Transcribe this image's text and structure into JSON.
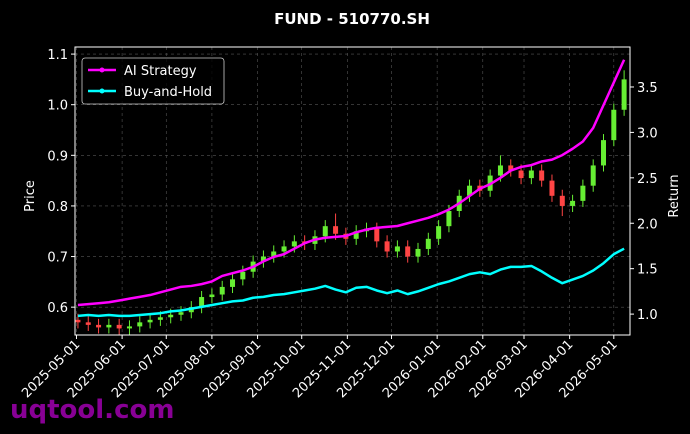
{
  "chart_data": {
    "type": "candlestick",
    "title": "FUND - 510770.SH",
    "ylabel": "Price",
    "y2label": "Return",
    "watermark": "uqtool.com",
    "x": [
      "2025-05-02",
      "2025-05-09",
      "2025-05-16",
      "2025-05-23",
      "2025-05-30",
      "2025-06-06",
      "2025-06-13",
      "2025-06-20",
      "2025-06-27",
      "2025-07-04",
      "2025-07-11",
      "2025-07-18",
      "2025-07-25",
      "2025-08-01",
      "2025-08-08",
      "2025-08-15",
      "2025-08-22",
      "2025-08-29",
      "2025-09-05",
      "2025-09-12",
      "2025-09-19",
      "2025-09-26",
      "2025-10-03",
      "2025-10-10",
      "2025-10-17",
      "2025-10-24",
      "2025-10-31",
      "2025-11-07",
      "2025-11-14",
      "2025-11-21",
      "2025-11-28",
      "2025-12-05",
      "2025-12-12",
      "2025-12-19",
      "2025-12-26",
      "2026-01-02",
      "2026-01-09",
      "2026-01-16",
      "2026-01-23",
      "2026-01-30",
      "2026-02-06",
      "2026-02-13",
      "2026-02-20",
      "2026-02-27",
      "2026-03-06",
      "2026-03-13",
      "2026-03-20",
      "2026-03-27",
      "2026-04-03",
      "2026-04-10",
      "2026-04-17",
      "2026-04-24",
      "2026-05-01",
      "2026-05-08"
    ],
    "ohlc": {
      "up_color": "#66ee33",
      "down_color": "#ff4444",
      "open": [
        0.575,
        0.57,
        0.565,
        0.56,
        0.565,
        0.558,
        0.562,
        0.57,
        0.575,
        0.58,
        0.585,
        0.59,
        0.6,
        0.62,
        0.625,
        0.64,
        0.655,
        0.67,
        0.69,
        0.7,
        0.71,
        0.72,
        0.73,
        0.725,
        0.74,
        0.76,
        0.745,
        0.735,
        0.75,
        0.755,
        0.73,
        0.71,
        0.72,
        0.7,
        0.715,
        0.735,
        0.76,
        0.79,
        0.82,
        0.84,
        0.83,
        0.86,
        0.88,
        0.87,
        0.855,
        0.87,
        0.85,
        0.82,
        0.8,
        0.81,
        0.84,
        0.88,
        0.93,
        0.99
      ],
      "high": [
        0.587,
        0.582,
        0.577,
        0.577,
        0.577,
        0.574,
        0.582,
        0.587,
        0.592,
        0.597,
        0.602,
        0.612,
        0.632,
        0.637,
        0.652,
        0.667,
        0.682,
        0.702,
        0.712,
        0.722,
        0.732,
        0.742,
        0.742,
        0.752,
        0.772,
        0.785,
        0.757,
        0.762,
        0.767,
        0.767,
        0.742,
        0.732,
        0.732,
        0.727,
        0.747,
        0.772,
        0.802,
        0.832,
        0.852,
        0.852,
        0.872,
        0.9,
        0.892,
        0.882,
        0.882,
        0.882,
        0.862,
        0.832,
        0.822,
        0.852,
        0.892,
        0.942,
        1.002,
        1.068
      ],
      "low": [
        0.558,
        0.553,
        0.548,
        0.548,
        0.546,
        0.546,
        0.55,
        0.558,
        0.563,
        0.568,
        0.573,
        0.578,
        0.588,
        0.608,
        0.613,
        0.628,
        0.643,
        0.658,
        0.678,
        0.688,
        0.698,
        0.708,
        0.713,
        0.713,
        0.728,
        0.733,
        0.723,
        0.723,
        0.738,
        0.718,
        0.698,
        0.698,
        0.688,
        0.688,
        0.703,
        0.723,
        0.748,
        0.778,
        0.808,
        0.818,
        0.818,
        0.848,
        0.858,
        0.843,
        0.843,
        0.838,
        0.808,
        0.78,
        0.788,
        0.798,
        0.828,
        0.868,
        0.918,
        0.978
      ],
      "close": [
        0.57,
        0.565,
        0.56,
        0.565,
        0.558,
        0.562,
        0.57,
        0.575,
        0.58,
        0.585,
        0.59,
        0.6,
        0.62,
        0.625,
        0.64,
        0.655,
        0.67,
        0.69,
        0.7,
        0.71,
        0.72,
        0.73,
        0.725,
        0.74,
        0.76,
        0.745,
        0.735,
        0.75,
        0.755,
        0.73,
        0.71,
        0.72,
        0.7,
        0.715,
        0.735,
        0.76,
        0.79,
        0.82,
        0.84,
        0.83,
        0.86,
        0.88,
        0.87,
        0.855,
        0.87,
        0.85,
        0.82,
        0.8,
        0.81,
        0.84,
        0.88,
        0.93,
        0.99,
        1.05
      ]
    },
    "series": [
      {
        "name": "AI Strategy",
        "color": "#ff00ff",
        "axis": "y2",
        "values": [
          1.1,
          1.11,
          1.12,
          1.13,
          1.15,
          1.17,
          1.19,
          1.21,
          1.24,
          1.27,
          1.3,
          1.31,
          1.33,
          1.36,
          1.42,
          1.45,
          1.48,
          1.52,
          1.58,
          1.63,
          1.66,
          1.72,
          1.78,
          1.82,
          1.84,
          1.85,
          1.86,
          1.9,
          1.93,
          1.95,
          1.96,
          1.97,
          2.0,
          2.03,
          2.06,
          2.1,
          2.15,
          2.22,
          2.3,
          2.38,
          2.43,
          2.5,
          2.58,
          2.62,
          2.64,
          2.68,
          2.7,
          2.75,
          2.82,
          2.9,
          3.05,
          3.3,
          3.55,
          3.8
        ]
      },
      {
        "name": "Buy-and-Hold",
        "color": "#00ffff",
        "axis": "y2",
        "values": [
          0.98,
          0.99,
          0.98,
          0.99,
          0.98,
          0.98,
          0.99,
          1.0,
          1.01,
          1.03,
          1.04,
          1.06,
          1.08,
          1.1,
          1.12,
          1.14,
          1.15,
          1.18,
          1.19,
          1.21,
          1.22,
          1.24,
          1.26,
          1.28,
          1.31,
          1.27,
          1.24,
          1.29,
          1.3,
          1.26,
          1.23,
          1.26,
          1.22,
          1.25,
          1.29,
          1.33,
          1.36,
          1.4,
          1.44,
          1.46,
          1.44,
          1.49,
          1.52,
          1.52,
          1.53,
          1.47,
          1.4,
          1.34,
          1.38,
          1.42,
          1.48,
          1.56,
          1.66,
          1.72
        ]
      }
    ],
    "xlim": [
      "2025-04-30",
      "2026-05-12"
    ],
    "xticks": [
      "2025-05-01",
      "2025-06-01",
      "2025-07-01",
      "2025-08-01",
      "2025-09-01",
      "2025-10-01",
      "2025-11-01",
      "2025-12-01",
      "2026-01-01",
      "2026-02-01",
      "2026-03-01",
      "2026-04-01",
      "2026-05-01"
    ],
    "ylim": [
      0.545,
      1.114
    ],
    "yticks": [
      0.6,
      0.7,
      0.8,
      0.9,
      {
        "value": 1,
        "label": "1.0"
      },
      1.1
    ],
    "y2lim": [
      0.77,
      3.94
    ],
    "y2ticks": [
      {
        "value": 1,
        "label": "1.0"
      },
      1.5,
      {
        "value": 2,
        "label": "2.0"
      },
      2.5,
      {
        "value": 3,
        "label": "3.0"
      },
      3.5
    ],
    "grid": true,
    "legend": "upper-left"
  }
}
